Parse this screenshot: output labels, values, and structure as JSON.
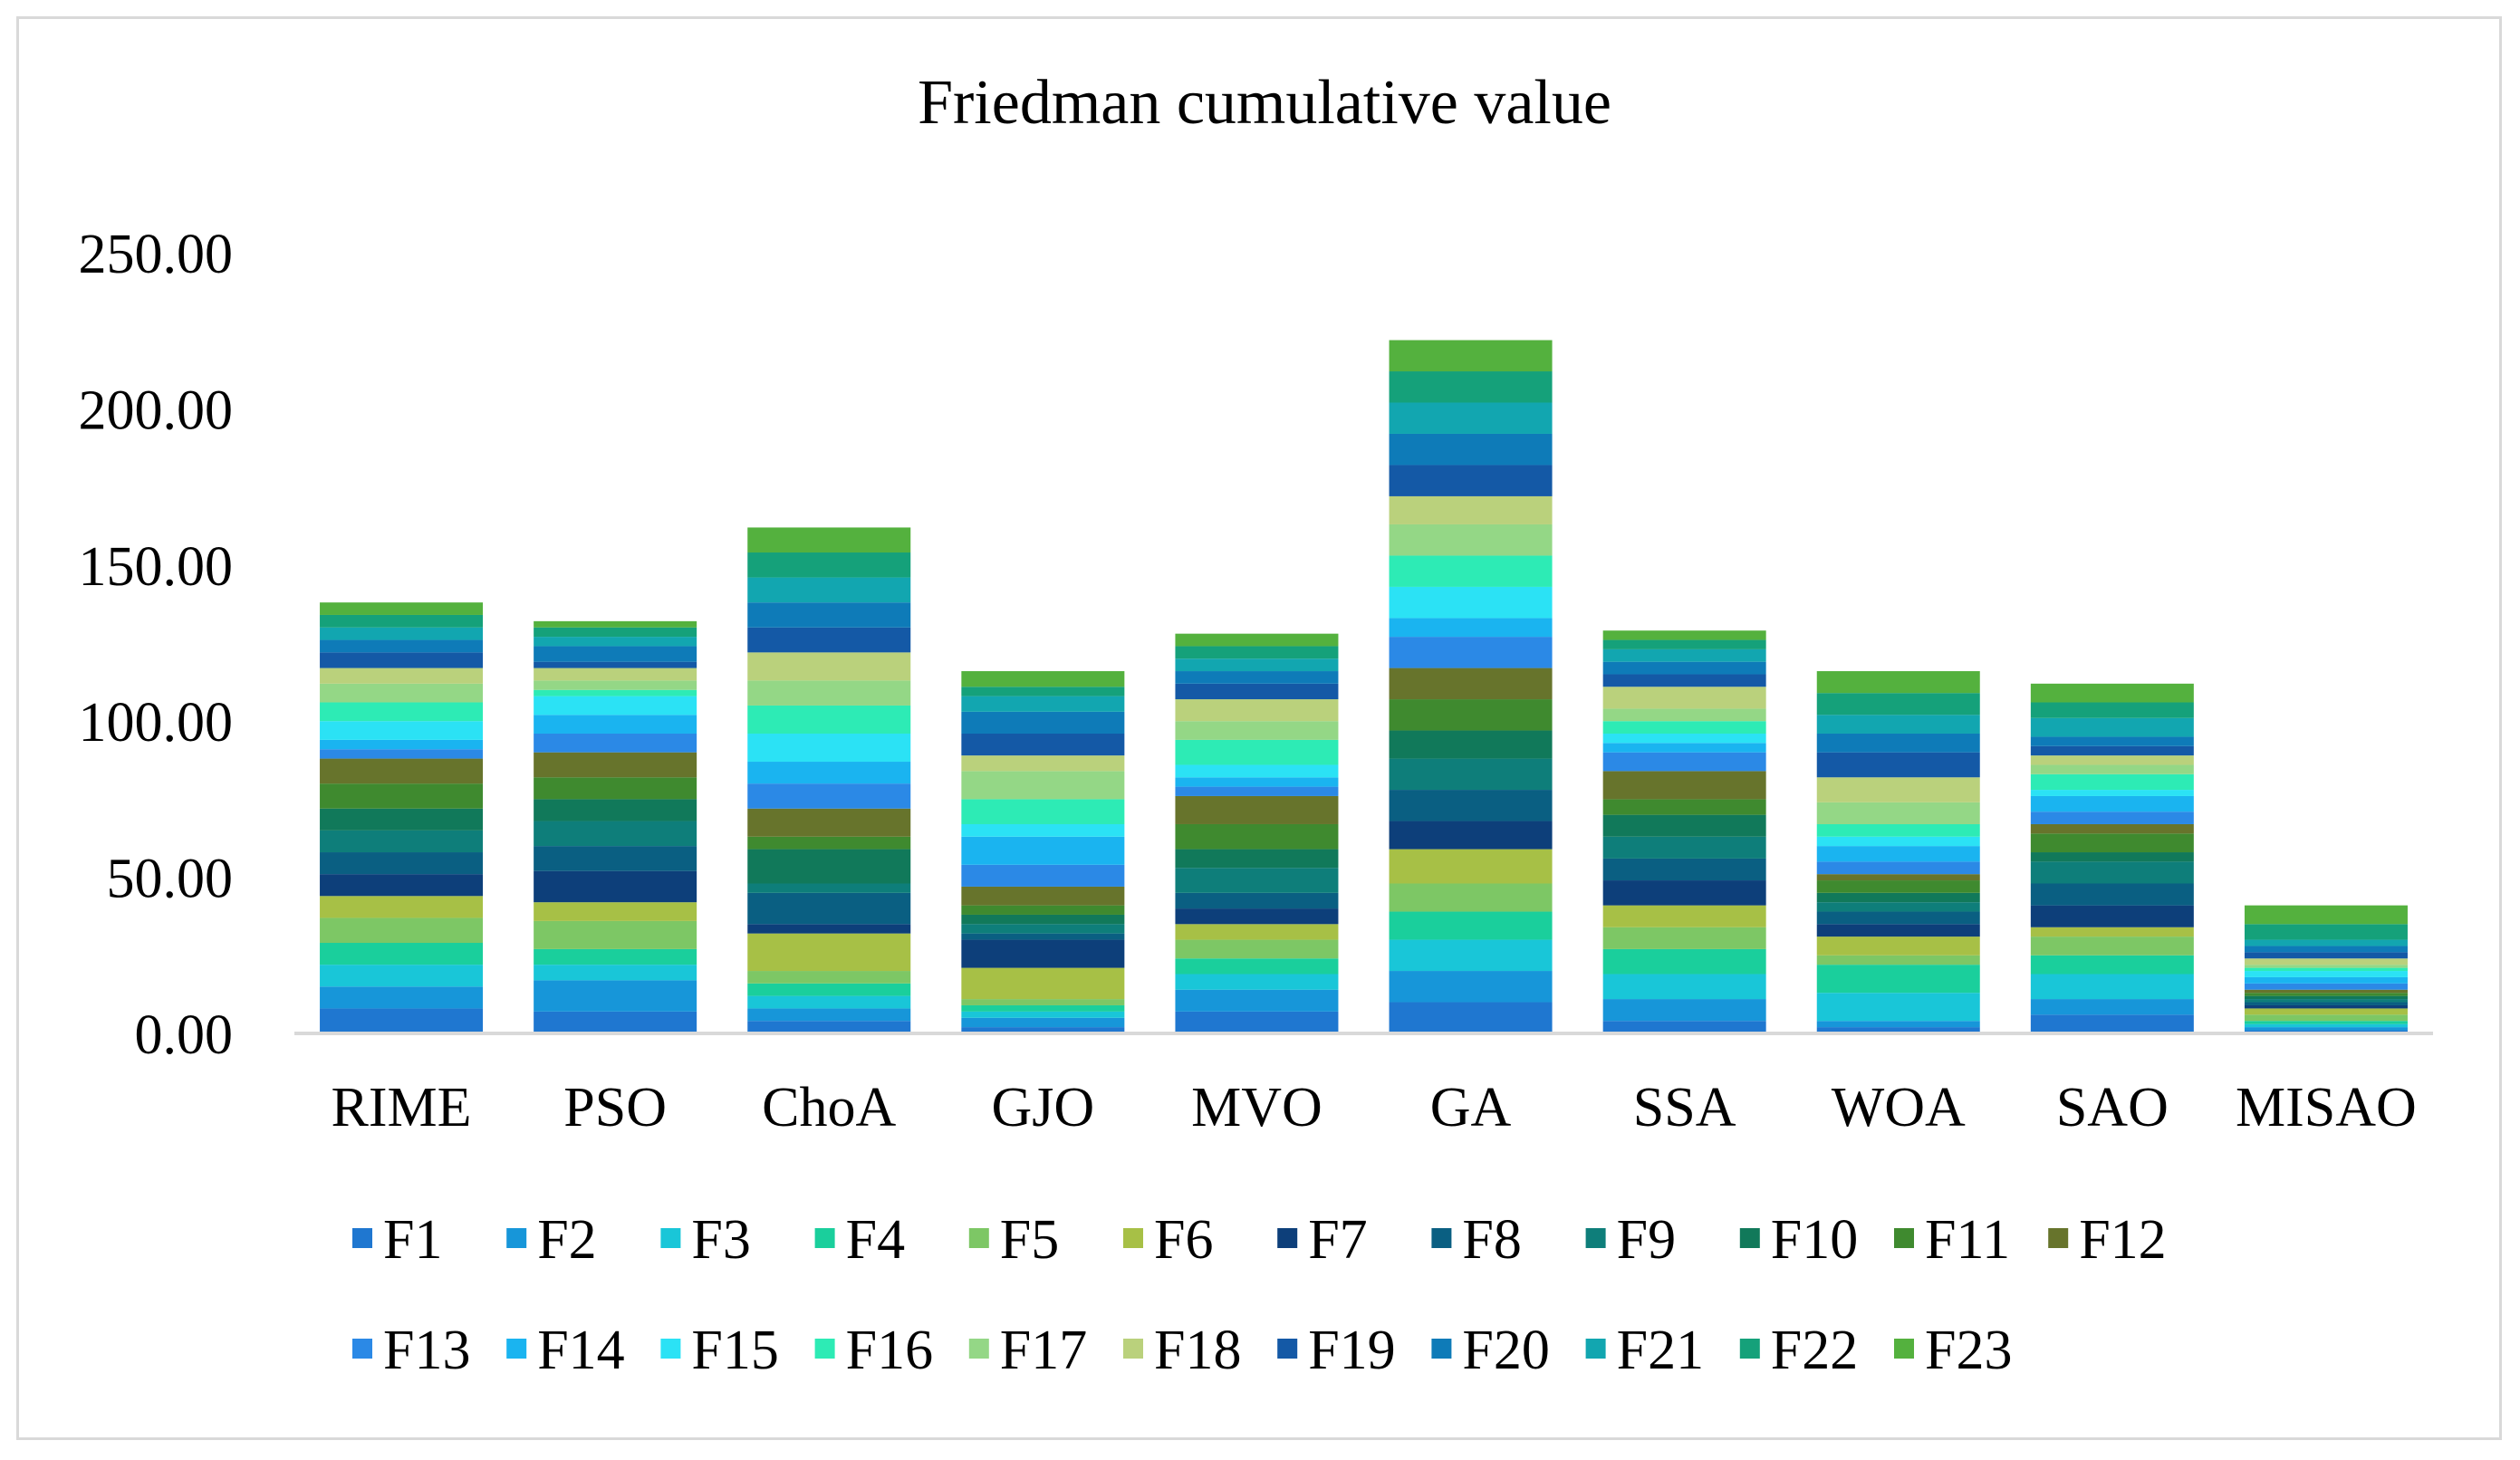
{
  "chart_data": {
    "type": "bar",
    "stacked": true,
    "title": "Friedman cumulative value",
    "xlabel": "",
    "ylabel": "",
    "ylim": [
      0,
      250
    ],
    "y_ticks": [
      0,
      50,
      100,
      150,
      200,
      250
    ],
    "y_tick_labels": [
      "0.00",
      "50.00",
      "100.00",
      "150.00",
      "200.00",
      "250.00"
    ],
    "grid": false,
    "legend_position": "bottom",
    "categories": [
      "RIME",
      "PSO",
      "ChoA",
      "GJO",
      "MVO",
      "GA",
      "SSA",
      "WOA",
      "SAO",
      "MISAO"
    ],
    "series": [
      {
        "name": "F1",
        "color": "#1F77D0",
        "values": [
          8,
          7,
          4,
          2,
          7,
          10,
          4,
          2,
          6,
          1
        ]
      },
      {
        "name": "F2",
        "color": "#1796D9",
        "values": [
          7,
          10,
          4,
          3,
          7,
          10,
          7,
          2,
          5,
          1
        ]
      },
      {
        "name": "F3",
        "color": "#19C6D8",
        "values": [
          7,
          5,
          4,
          2,
          5,
          10,
          8,
          9,
          8,
          1
        ]
      },
      {
        "name": "F4",
        "color": "#1ACF9C",
        "values": [
          7,
          5,
          4,
          2,
          5,
          9,
          8,
          9,
          6,
          1
        ]
      },
      {
        "name": "F5",
        "color": "#7DC765",
        "values": [
          8,
          9,
          4,
          2,
          6,
          9,
          7,
          3,
          6,
          2
        ]
      },
      {
        "name": "F6",
        "color": "#A7C046",
        "values": [
          7,
          6,
          12,
          10,
          5,
          11,
          7,
          6,
          3,
          2
        ]
      },
      {
        "name": "F7",
        "color": "#0D3F7A",
        "values": [
          7,
          10,
          3,
          9,
          5,
          9,
          8,
          4,
          7,
          1
        ]
      },
      {
        "name": "F8",
        "color": "#0A5F82",
        "values": [
          7,
          8,
          10,
          2,
          5,
          10,
          7,
          4,
          7,
          1
        ]
      },
      {
        "name": "F9",
        "color": "#0E7E7A",
        "values": [
          7,
          8,
          3,
          3,
          8,
          10,
          7,
          3,
          7,
          1
        ]
      },
      {
        "name": "F10",
        "color": "#11795A",
        "values": [
          7,
          7,
          11,
          3,
          6,
          9,
          7,
          3,
          3,
          1
        ]
      },
      {
        "name": "F11",
        "color": "#3F8A2F",
        "values": [
          8,
          7,
          4,
          3,
          8,
          10,
          5,
          4,
          6,
          1
        ]
      },
      {
        "name": "F12",
        "color": "#67742C",
        "values": [
          8,
          8,
          9,
          6,
          9,
          10,
          9,
          2,
          3,
          1
        ]
      },
      {
        "name": "F13",
        "color": "#2B89E6",
        "values": [
          3,
          6,
          8,
          7,
          3,
          10,
          6,
          4,
          4,
          2
        ]
      },
      {
        "name": "F14",
        "color": "#1AB4F0",
        "values": [
          3,
          6,
          7,
          9,
          3,
          6,
          3,
          5,
          5,
          2
        ]
      },
      {
        "name": "F15",
        "color": "#2BE2F5",
        "values": [
          6,
          6,
          9,
          4,
          4,
          10,
          3,
          3,
          2,
          2
        ]
      },
      {
        "name": "F16",
        "color": "#2DEBB5",
        "values": [
          6,
          2,
          9,
          8,
          8,
          10,
          4,
          4,
          5,
          1
        ]
      },
      {
        "name": "F17",
        "color": "#94D786",
        "values": [
          6,
          3,
          8,
          9,
          6,
          10,
          4,
          7,
          3,
          1
        ]
      },
      {
        "name": "F18",
        "color": "#BAD17C",
        "values": [
          5,
          4,
          9,
          5,
          7,
          9,
          7,
          8,
          3,
          2
        ]
      },
      {
        "name": "F19",
        "color": "#1459A6",
        "values": [
          5,
          2,
          8,
          7,
          5,
          10,
          4,
          8,
          3,
          2
        ]
      },
      {
        "name": "F20",
        "color": "#0E7BB8",
        "values": [
          4,
          5,
          8,
          7,
          4,
          10,
          4,
          6,
          3,
          2
        ]
      },
      {
        "name": "F21",
        "color": "#12A6B0",
        "values": [
          4,
          3,
          8,
          5,
          4,
          10,
          4,
          6,
          6,
          2
        ]
      },
      {
        "name": "F22",
        "color": "#15A17A",
        "values": [
          4,
          3,
          8,
          3,
          4,
          10,
          3,
          7,
          5,
          5
        ]
      },
      {
        "name": "F23",
        "color": "#54B13E",
        "values": [
          4,
          2,
          8,
          5,
          4,
          10,
          3,
          7,
          6,
          6
        ]
      }
    ]
  }
}
